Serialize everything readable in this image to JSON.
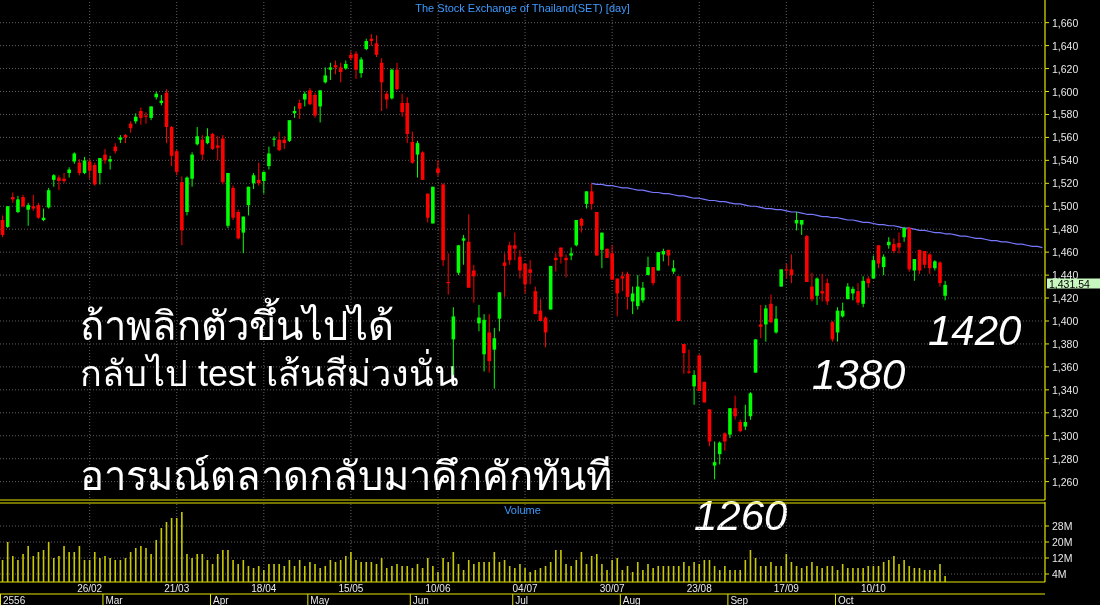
{
  "chart_data": [
    {
      "type": "candlestick",
      "title": "The Stock Exchange of Thailand(SET) [day]",
      "categories": [
        null,
        null,
        null,
        null,
        null,
        null,
        null,
        null,
        null,
        null,
        null,
        null,
        null,
        null,
        null,
        null,
        null,
        null,
        null,
        null,
        null,
        null,
        null,
        null,
        null,
        null,
        null,
        null,
        null,
        null,
        null,
        null,
        null,
        null,
        null,
        null,
        null,
        null,
        null,
        null,
        null,
        null,
        null,
        null,
        null,
        null,
        null,
        null,
        null,
        null,
        null,
        null,
        null,
        null,
        null,
        null,
        null,
        null,
        null,
        null,
        null,
        null,
        null,
        null,
        null,
        null,
        null,
        null,
        null,
        null,
        null,
        null,
        null,
        null,
        null,
        null,
        null,
        null,
        null,
        null,
        null,
        null,
        null,
        null,
        null,
        null,
        null,
        null,
        null,
        null,
        null,
        null,
        null,
        null,
        null,
        null,
        null,
        null,
        null,
        null,
        null,
        null,
        null,
        null,
        null,
        null,
        null,
        null,
        null,
        null,
        null,
        null,
        null,
        null,
        null,
        null,
        null,
        null,
        null,
        null,
        null,
        null,
        null,
        null,
        null,
        null,
        null,
        null,
        null,
        null,
        null,
        null,
        null,
        null,
        null,
        null,
        null,
        null,
        null,
        null,
        null,
        null,
        null,
        null,
        null,
        null,
        null,
        null,
        null,
        null,
        null,
        null,
        null,
        null,
        null,
        null,
        null,
        null,
        null,
        null,
        null,
        null,
        null,
        null,
        null,
        null,
        null,
        null,
        null,
        null,
        null,
        null,
        null,
        null,
        null,
        null,
        null,
        null,
        null,
        null,
        null,
        null,
        null,
        null,
        null,
        null,
        null,
        null,
        null,
        null,
        null,
        null,
        null,
        null,
        null,
        null,
        null,
        null,
        null,
        null,
        null,
        null,
        null,
        null
      ],
      "ohlc": [
        [
          1488,
          1492,
          1473,
          1475
        ],
        [
          1482,
          1500,
          1481,
          1500
        ],
        [
          1508,
          1512,
          1503,
          1506
        ],
        [
          1495,
          1509,
          1494,
          1506
        ],
        [
          1508,
          1510,
          1499,
          1500
        ],
        [
          1497,
          1503,
          1483,
          1501
        ],
        [
          1500,
          1510,
          1496,
          1498
        ],
        [
          1501,
          1503,
          1489,
          1490
        ],
        [
          1488,
          1498,
          1487,
          1490
        ],
        [
          1499,
          1516,
          1498,
          1514
        ],
        [
          1523,
          1528,
          1517,
          1527
        ],
        [
          1525,
          1527,
          1514,
          1522
        ],
        [
          1524,
          1529,
          1520,
          1522
        ],
        [
          1529,
          1534,
          1525,
          1532
        ],
        [
          1539,
          1547,
          1537,
          1546
        ],
        [
          1538,
          1541,
          1527,
          1529
        ],
        [
          1529,
          1543,
          1528,
          1540
        ],
        [
          1539,
          1541,
          1524,
          1531
        ],
        [
          1536,
          1538,
          1518,
          1519
        ],
        [
          1529,
          1542,
          1519,
          1542
        ],
        [
          1545,
          1550,
          1537,
          1540
        ],
        [
          1539,
          1544,
          1532,
          1541
        ],
        [
          1552,
          1555,
          1546,
          1548
        ],
        [
          1558,
          1562,
          1555,
          1560
        ],
        [
          1562,
          1563,
          1555,
          1560
        ],
        [
          1572,
          1574,
          1564,
          1568
        ],
        [
          1574,
          1581,
          1572,
          1578
        ],
        [
          1583,
          1586,
          1571,
          1577
        ],
        [
          1579,
          1582,
          1572,
          1578
        ],
        [
          1577,
          1587,
          1575,
          1587
        ],
        [
          1595,
          1600,
          1593,
          1598
        ],
        [
          1590,
          1597,
          1588,
          1592
        ],
        [
          1599,
          1602,
          1555,
          1569
        ],
        [
          1569,
          1570,
          1535,
          1544
        ],
        [
          1548,
          1549,
          1527,
          1530
        ],
        [
          1521,
          1526,
          1466,
          1479
        ],
        [
          1495,
          1526,
          1492,
          1525
        ],
        [
          1524,
          1547,
          1517,
          1545
        ],
        [
          1554,
          1569,
          1553,
          1561
        ],
        [
          1558,
          1562,
          1540,
          1545
        ],
        [
          1555,
          1568,
          1554,
          1561
        ],
        [
          1563,
          1564,
          1549,
          1550
        ],
        [
          1553,
          1561,
          1540,
          1551
        ],
        [
          1559,
          1562,
          1519,
          1521
        ],
        [
          1483,
          1529,
          1481,
          1529
        ],
        [
          1516,
          1518,
          1488,
          1490
        ],
        [
          1495,
          1497,
          1471,
          1472
        ],
        [
          1477,
          1491,
          1459,
          1491
        ],
        [
          1501,
          1517,
          1492,
          1517
        ],
        [
          1520,
          1529,
          1515,
          1527
        ],
        [
          1523,
          1538,
          1518,
          1520
        ],
        [
          1522,
          1530,
          1511,
          1530
        ],
        [
          1535,
          1552,
          1532,
          1546
        ],
        [
          1558,
          1561,
          1552,
          1559
        ],
        [
          1558,
          1565,
          1548,
          1549
        ],
        [
          1558,
          1561,
          1550,
          1555
        ],
        [
          1557,
          1575,
          1556,
          1575
        ],
        [
          1581,
          1587,
          1577,
          1583
        ],
        [
          1590,
          1593,
          1576,
          1585
        ],
        [
          1593,
          1600,
          1587,
          1598
        ],
        [
          1601,
          1603,
          1588,
          1589
        ],
        [
          1597,
          1599,
          1577,
          1579
        ],
        [
          1587,
          1601,
          1573,
          1601
        ],
        [
          1608,
          1621,
          1607,
          1614
        ],
        [
          1619,
          1625,
          1610,
          1621
        ],
        [
          1623,
          1627,
          1615,
          1621
        ],
        [
          1621,
          1625,
          1608,
          1617
        ],
        [
          1620,
          1627,
          1619,
          1624
        ],
        [
          1632,
          1635,
          1627,
          1629
        ],
        [
          1633,
          1635,
          1611,
          1619
        ],
        [
          1616,
          1630,
          1612,
          1628
        ],
        [
          1637,
          1646,
          1636,
          1644
        ],
        [
          1646,
          1650,
          1640,
          1644
        ],
        [
          1642,
          1649,
          1630,
          1632
        ],
        [
          1625,
          1629,
          1583,
          1608
        ],
        [
          1598,
          1600,
          1585,
          1593
        ],
        [
          1594,
          1620,
          1593,
          1619
        ],
        [
          1619,
          1625,
          1601,
          1602
        ],
        [
          1590,
          1598,
          1578,
          1582
        ],
        [
          1590,
          1595,
          1555,
          1563
        ],
        [
          1556,
          1565,
          1537,
          1538
        ],
        [
          1545,
          1557,
          1525,
          1555
        ],
        [
          1547,
          1548,
          1523,
          1523
        ],
        [
          1511,
          1511,
          1486,
          1490
        ],
        [
          1485,
          1517,
          1485,
          1517
        ],
        [
          1533,
          1540,
          1526,
          1529
        ],
        [
          1519,
          1520,
          1448,
          1453
        ],
        [
          1434,
          1459,
          1423,
          1433
        ],
        [
          1384,
          1412,
          1353,
          1404
        ],
        [
          1442,
          1466,
          1440,
          1466
        ],
        [
          1470,
          1475,
          1449,
          1472
        ],
        [
          1469,
          1493,
          1429,
          1429
        ],
        [
          1444,
          1449,
          1416,
          1439
        ],
        [
          1398,
          1414,
          1391,
          1403
        ],
        [
          1371,
          1406,
          1356,
          1401
        ],
        [
          1390,
          1406,
          1355,
          1365
        ],
        [
          1375,
          1394,
          1341,
          1385
        ],
        [
          1402,
          1425,
          1391,
          1425
        ],
        [
          1451,
          1459,
          1421,
          1448
        ],
        [
          1466,
          1469,
          1449,
          1453
        ],
        [
          1466,
          1477,
          1453,
          1463
        ],
        [
          1456,
          1462,
          1437,
          1444
        ],
        [
          1450,
          1450,
          1424,
          1432
        ],
        [
          1445,
          1453,
          1432,
          1442
        ],
        [
          1426,
          1430,
          1406,
          1406
        ],
        [
          1409,
          1419,
          1400,
          1400
        ],
        [
          1403,
          1404,
          1377,
          1390
        ],
        [
          1410,
          1448,
          1410,
          1448
        ],
        [
          1455,
          1459,
          1443,
          1453
        ],
        [
          1464,
          1464,
          1450,
          1456
        ],
        [
          1455,
          1458,
          1438,
          1453
        ],
        [
          1457,
          1464,
          1453,
          1459
        ],
        [
          1466,
          1488,
          1465,
          1488
        ],
        [
          1489,
          1490,
          1477,
          1483
        ],
        [
          1502,
          1513,
          1498,
          1513
        ],
        [
          1513,
          1520,
          1497,
          1502
        ],
        [
          1495,
          1495,
          1457,
          1457
        ],
        [
          1462,
          1477,
          1446,
          1477
        ],
        [
          1463,
          1463,
          1455,
          1455
        ],
        [
          1459,
          1466,
          1436,
          1436
        ],
        [
          1437,
          1437,
          1404,
          1424
        ],
        [
          1439,
          1443,
          1426,
          1437
        ],
        [
          1441,
          1443,
          1410,
          1421
        ],
        [
          1417,
          1430,
          1406,
          1424
        ],
        [
          1413,
          1440,
          1410,
          1430
        ],
        [
          1418,
          1434,
          1416,
          1429
        ],
        [
          1440,
          1456,
          1440,
          1447
        ],
        [
          1447,
          1447,
          1431,
          1433
        ],
        [
          1444,
          1460,
          1444,
          1460
        ],
        [
          1458,
          1463,
          1452,
          1461
        ],
        [
          1462,
          1462,
          1448,
          1457
        ],
        [
          1443,
          1453,
          1441,
          1446
        ],
        [
          1439,
          1439,
          1400,
          1400
        ],
        [
          1380,
          1380,
          1354,
          1372
        ],
        [
          1356,
          1375,
          1354,
          1355
        ],
        [
          1343,
          1357,
          1327,
          1353
        ],
        [
          1370,
          1371,
          1339,
          1339
        ],
        [
          1347,
          1347,
          1329,
          1329
        ],
        [
          1323,
          1323,
          1291,
          1295
        ],
        [
          1274,
          1295,
          1262,
          1277
        ],
        [
          1284,
          1295,
          1275,
          1294
        ],
        [
          1302,
          1303,
          1287,
          1295
        ],
        [
          1301,
          1324,
          1298,
          1324
        ],
        [
          1324,
          1335,
          1314,
          1317
        ],
        [
          1312,
          1314,
          1303,
          1304
        ],
        [
          1308,
          1327,
          1305,
          1312
        ],
        [
          1317,
          1338,
          1314,
          1337
        ],
        [
          1355,
          1384,
          1355,
          1384
        ],
        [
          1397,
          1414,
          1385,
          1395
        ],
        [
          1397,
          1414,
          1382,
          1411
        ],
        [
          1415,
          1423,
          1398,
          1399
        ],
        [
          1390,
          1413,
          1389,
          1402
        ],
        [
          1430,
          1445,
          1430,
          1445
        ],
        [
          1445,
          1450,
          1437,
          1444
        ],
        [
          1445,
          1458,
          1433,
          1440
        ],
        [
          1485,
          1495,
          1479,
          1488
        ],
        [
          1484,
          1488,
          1475,
          1488
        ],
        [
          1474,
          1475,
          1434,
          1434
        ],
        [
          1430,
          1442,
          1417,
          1419
        ],
        [
          1422,
          1438,
          1414,
          1437
        ],
        [
          1426,
          1441,
          1417,
          1424
        ],
        [
          1433,
          1437,
          1414,
          1417
        ],
        [
          1399,
          1400,
          1382,
          1384
        ],
        [
          1390,
          1412,
          1382,
          1409
        ],
        [
          1404,
          1416,
          1403,
          1409
        ],
        [
          1419,
          1433,
          1419,
          1430
        ],
        [
          1424,
          1430,
          1418,
          1428
        ],
        [
          1426,
          1433,
          1414,
          1416
        ],
        [
          1415,
          1439,
          1412,
          1435
        ],
        [
          1437,
          1439,
          1429,
          1433
        ],
        [
          1437,
          1457,
          1437,
          1453
        ],
        [
          1466,
          1466,
          1446,
          1450
        ],
        [
          1447,
          1458,
          1440,
          1456
        ],
        [
          1466,
          1473,
          1463,
          1469
        ],
        [
          1467,
          1472,
          1459,
          1461
        ],
        [
          1468,
          1477,
          1459,
          1464
        ],
        [
          1473,
          1482,
          1469,
          1481
        ],
        [
          1481,
          1482,
          1443,
          1445
        ],
        [
          1444,
          1454,
          1435,
          1454
        ],
        [
          1462,
          1462,
          1441,
          1444
        ],
        [
          1461,
          1461,
          1446,
          1449
        ],
        [
          1458,
          1459,
          1441,
          1446
        ],
        [
          1446,
          1453,
          1444,
          1452
        ],
        [
          1451,
          1452,
          1430,
          1433
        ],
        [
          1422,
          1435,
          1418,
          1431.54
        ],
        null,
        null,
        null,
        null,
        null,
        null,
        null,
        null,
        null,
        null,
        null,
        null,
        null,
        null,
        null,
        null,
        null,
        null,
        null
      ],
      "colors": [
        "#ff0000",
        "#00ff00",
        "#ff0000",
        "#00ff00",
        "#ff0000",
        "#00ff00",
        "#ff0000",
        "#ff0000",
        "#00ff00",
        "#00ff00",
        "#00ff00",
        "#ff0000",
        "#ff0000",
        "#00ff00",
        "#00ff00",
        "#ff0000",
        "#00ff00",
        "#ff0000",
        "#ff0000",
        "#00ff00",
        "#ff0000",
        "#00ff00",
        "#ff0000",
        "#00ff00",
        "#ff0000",
        "#ff0000",
        "#00ff00",
        "#ff0000",
        "#ff0000",
        "#00ff00",
        "#00ff00",
        "#00ff00",
        "#ff0000",
        "#ff0000",
        "#ff0000",
        "#ff0000",
        "#00ff00",
        "#00ff00",
        "#00ff00",
        "#ff0000",
        "#00ff00",
        "#ff0000",
        "#ff0000",
        "#ff0000",
        "#00ff00",
        "#ff0000",
        "#ff0000",
        "#00ff00",
        "#00ff00",
        "#00ff00",
        "#ff0000",
        "#00ff00",
        "#00ff00",
        "#00ff00",
        "#ff0000",
        "#ff0000",
        "#00ff00",
        "#00ff00",
        "#ff0000",
        "#00ff00",
        "#ff0000",
        "#ff0000",
        "#00ff00",
        "#00ff00",
        "#00ff00",
        "#ff0000",
        "#ff0000",
        "#00ff00",
        "#ff0000",
        "#ff0000",
        "#00ff00",
        "#00ff00",
        "#ff0000",
        "#ff0000",
        "#ff0000",
        "#ff0000",
        "#00ff00",
        "#ff0000",
        "#ff0000",
        "#ff0000",
        "#ff0000",
        "#00ff00",
        "#ff0000",
        "#ff0000",
        "#00ff00",
        "#ff0000",
        "#ff0000",
        "#ff0000",
        "#00ff00",
        "#00ff00",
        "#00ff00",
        "#ff0000",
        "#ff0000",
        "#00ff00",
        "#00ff00",
        "#ff0000",
        "#00ff00",
        "#00ff00",
        "#ff0000",
        "#ff0000",
        "#ff0000",
        "#ff0000",
        "#ff0000",
        "#ff0000",
        "#ff0000",
        "#ff0000",
        "#ff0000",
        "#00ff00",
        "#ff0000",
        "#ff0000",
        "#ff0000",
        "#00ff00",
        "#00ff00",
        "#ff0000",
        "#00ff00",
        "#ff0000",
        "#ff0000",
        "#00ff00",
        "#ff0000",
        "#ff0000",
        "#ff0000",
        "#ff0000",
        "#ff0000",
        "#00ff00",
        "#00ff00",
        "#00ff00",
        "#00ff00",
        "#ff0000",
        "#00ff00",
        "#00ff00",
        "#ff0000",
        "#00ff00",
        "#ff0000",
        "#ff0000",
        "#ff0000",
        "#00ff00",
        "#ff0000",
        "#ff0000",
        "#ff0000",
        "#00ff00",
        "#00ff00",
        "#ff0000",
        "#00ff00",
        "#ff0000",
        "#ff0000",
        "#00ff00",
        "#00ff00",
        "#00ff00",
        "#ff0000",
        "#00ff00",
        "#ff0000",
        "#00ff00",
        "#00ff00",
        "#ff0000",
        "#ff0000",
        "#00ff00",
        "#00ff00",
        "#ff0000",
        "#ff0000",
        "#00ff00",
        "#ff0000",
        "#ff0000",
        "#ff0000",
        "#00ff00",
        "#00ff00",
        "#00ff00",
        "#00ff00",
        "#ff0000",
        "#00ff00",
        "#ff0000",
        "#00ff00",
        "#ff0000",
        "#00ff00",
        "#00ff00",
        "#ff0000",
        "#ff0000",
        "#00ff00",
        "#ff0000",
        "#00ff00",
        "#ff0000",
        "#ff0000",
        "#ff0000",
        "#00ff00",
        "#ff0000",
        "#00ff00",
        null,
        null,
        null,
        null,
        null,
        null,
        null,
        null,
        null,
        null,
        null,
        null,
        null,
        null,
        null,
        null,
        null,
        null,
        null
      ],
      "series": [
        {
          "type": "line",
          "color": "#7777ff",
          "values": [
            null,
            null,
            null,
            null,
            null,
            null,
            null,
            null,
            null,
            null,
            null,
            null,
            null,
            null,
            null,
            null,
            null,
            null,
            null,
            null,
            null,
            null,
            null,
            null,
            null,
            null,
            null,
            null,
            null,
            null,
            null,
            null,
            null,
            null,
            null,
            null,
            null,
            null,
            null,
            null,
            null,
            null,
            null,
            null,
            null,
            null,
            null,
            null,
            null,
            null,
            null,
            null,
            null,
            null,
            null,
            null,
            null,
            null,
            null,
            null,
            null,
            null,
            null,
            null,
            null,
            null,
            null,
            null,
            null,
            null,
            null,
            null,
            null,
            null,
            null,
            null,
            null,
            null,
            null,
            null,
            null,
            null,
            null,
            null,
            null,
            null,
            null,
            null,
            null,
            null,
            null,
            null,
            null,
            null,
            null,
            null,
            null,
            null,
            null,
            null,
            null,
            null,
            null,
            null,
            null,
            null,
            null,
            null,
            null,
            null,
            null,
            null,
            null,
            null,
            null,
            1520,
            1519,
            1519,
            1518,
            1518,
            1517,
            1516,
            1516,
            1515,
            1514,
            1514,
            1513,
            1512,
            1512,
            1511,
            1511,
            1510,
            1509,
            1509,
            1508,
            1507,
            1507,
            1506,
            1505,
            1505,
            1504,
            1504,
            1503,
            1502,
            1502,
            1501,
            1500,
            1500,
            1499,
            1498,
            1498,
            1497,
            1497,
            1496,
            1495,
            1495,
            1494,
            1493,
            1493,
            1492,
            1491,
            1491,
            1490,
            1490,
            1489,
            1488,
            1488,
            1487,
            1486,
            1486,
            1485,
            1484,
            1484,
            1483,
            1483,
            1482,
            1481,
            1481,
            1480,
            1479,
            1479,
            1478,
            1477,
            1477,
            1476,
            1476,
            1475,
            1474,
            1474,
            1473,
            1472,
            1472,
            1471,
            1470,
            1470,
            1469,
            1469,
            1468,
            1467,
            1467,
            1466,
            1465,
            1465,
            1464
          ]
        }
      ],
      "ylim": [
        1244,
        1678
      ],
      "yticks": [
        {
          "value": 1260,
          "label": "1,260"
        },
        {
          "value": 1280,
          "label": "1,280"
        },
        {
          "value": 1300,
          "label": "1,300"
        },
        {
          "value": 1320,
          "label": "1,320"
        },
        {
          "value": 1340,
          "label": "1,340"
        },
        {
          "value": 1360,
          "label": "1,360"
        },
        {
          "value": 1380,
          "label": "1,380"
        },
        {
          "value": 1400,
          "label": "1,400"
        },
        {
          "value": 1420,
          "label": "1,420"
        },
        {
          "value": 1440,
          "label": "1,440"
        },
        {
          "value": 1460,
          "label": "1,460"
        },
        {
          "value": 1480,
          "label": "1,480"
        },
        {
          "value": 1500,
          "label": "1,500"
        },
        {
          "value": 1520,
          "label": "1,520"
        },
        {
          "value": 1540,
          "label": "1,540"
        },
        {
          "value": 1560,
          "label": "1,560"
        },
        {
          "value": 1580,
          "label": "1,580"
        },
        {
          "value": 1600,
          "label": "1,600"
        },
        {
          "value": 1620,
          "label": "1,620"
        },
        {
          "value": 1640,
          "label": "1,640"
        },
        {
          "value": 1660,
          "label": "1,660"
        }
      ],
      "grid": true,
      "tick_labels": "y",
      "annotations": [
        "ถ้าพลิกตัวขึ้นไปได้",
        "กลับไป test เส้นสีม่วงนั่น",
        "อารมณ์ตลาดกลับมาคึกคักทันที",
        "1420",
        "1380",
        "1260",
        "1,431.54"
      ]
    },
    {
      "type": "bar",
      "title": "Volume",
      "categories": [
        null,
        null,
        null,
        null,
        null,
        null,
        null,
        null,
        null,
        null,
        null,
        null,
        null,
        null,
        null,
        null,
        null,
        "26/02",
        null,
        null,
        null,
        null,
        null,
        null,
        null,
        null,
        null,
        null,
        null,
        null,
        null,
        null,
        null,
        null,
        "21/03",
        null,
        null,
        null,
        null,
        null,
        null,
        null,
        null,
        null,
        null,
        null,
        null,
        null,
        null,
        null,
        null,
        "18/04",
        null,
        null,
        null,
        null,
        null,
        null,
        null,
        null,
        null,
        null,
        null,
        null,
        null,
        null,
        null,
        null,
        "15/05",
        null,
        null,
        null,
        null,
        null,
        null,
        null,
        null,
        null,
        null,
        null,
        null,
        null,
        null,
        null,
        null,
        "10/06",
        null,
        null,
        null,
        null,
        null,
        null,
        null,
        null,
        null,
        null,
        null,
        null,
        null,
        null,
        null,
        null,
        "04/07",
        null,
        null,
        null,
        null,
        null,
        null,
        null,
        null,
        null,
        null,
        null,
        null,
        null,
        null,
        null,
        null,
        "30/07",
        null,
        null,
        null,
        null,
        null,
        null,
        null,
        null,
        null,
        null,
        null,
        null,
        null,
        null,
        null,
        null,
        "23/08",
        null,
        null,
        null,
        null,
        null,
        null,
        null,
        null,
        null,
        null,
        null,
        null,
        null,
        null,
        null,
        null,
        "17/09",
        null,
        null,
        null,
        null,
        null,
        null,
        null,
        null,
        null,
        null,
        null,
        null,
        null,
        null,
        null,
        null,
        "10/10",
        null,
        null,
        null,
        null,
        null,
        null,
        null,
        null,
        null,
        null,
        null,
        null,
        null,
        null,
        null,
        null,
        null,
        null,
        null,
        null,
        null,
        null,
        null,
        null,
        null,
        null,
        null,
        null,
        null,
        null,
        null,
        null,
        null
      ],
      "values": [
        11,
        20,
        13,
        11,
        14,
        18,
        13,
        15,
        16,
        20,
        12,
        13,
        18,
        15,
        15,
        18,
        11,
        11,
        15,
        12,
        13,
        12,
        11,
        11,
        12,
        15,
        17,
        18,
        17,
        14,
        21,
        27,
        30,
        32,
        32,
        35,
        14,
        12,
        14,
        14,
        11,
        9,
        14,
        16,
        16,
        11,
        9,
        11,
        8,
        7,
        8,
        6,
        9,
        9,
        9,
        8,
        11,
        8,
        11,
        8,
        10,
        9,
        7,
        8,
        11,
        10,
        11,
        13,
        15,
        11,
        10,
        10,
        10,
        9,
        12,
        7,
        8,
        9,
        8,
        8,
        7,
        9,
        7,
        12,
        8,
        5,
        12,
        10,
        15,
        9,
        6,
        11,
        9,
        10,
        10,
        10,
        15,
        10,
        11,
        8,
        7,
        9,
        7,
        5,
        6,
        7,
        8,
        10,
        16,
        16,
        9,
        8,
        11,
        15,
        9,
        13,
        14,
        9,
        6,
        11,
        12,
        6,
        8,
        5,
        10,
        6,
        9,
        7,
        8,
        8,
        8,
        8,
        8,
        10,
        8,
        10,
        9,
        11,
        11,
        8,
        6,
        8,
        6,
        6,
        6,
        11,
        16,
        12,
        8,
        8,
        10,
        8,
        8,
        14,
        10,
        8,
        7,
        8,
        10,
        8,
        7,
        8,
        8,
        6,
        9,
        7,
        7,
        7,
        7,
        8,
        8,
        8,
        10,
        11,
        13,
        9,
        11,
        8,
        7,
        7,
        6,
        6,
        6,
        9,
        3,
        null,
        null,
        null,
        null,
        null,
        null,
        null,
        null,
        null,
        null,
        null,
        null,
        null,
        null,
        null,
        null,
        null,
        null,
        null
      ],
      "color": "#c8c800",
      "ylim": [
        0,
        39
      ],
      "yticks": [
        {
          "value": 4,
          "label": "4M"
        },
        {
          "value": 12,
          "label": "12M"
        },
        {
          "value": 20,
          "label": "20M"
        },
        {
          "value": 28,
          "label": "28M"
        }
      ],
      "grid": true,
      "annotations": [
        "2556",
        "Mar",
        "Apr",
        "May",
        "Jun",
        "Jul",
        "Aug",
        "Sep",
        "Oct"
      ]
    }
  ]
}
